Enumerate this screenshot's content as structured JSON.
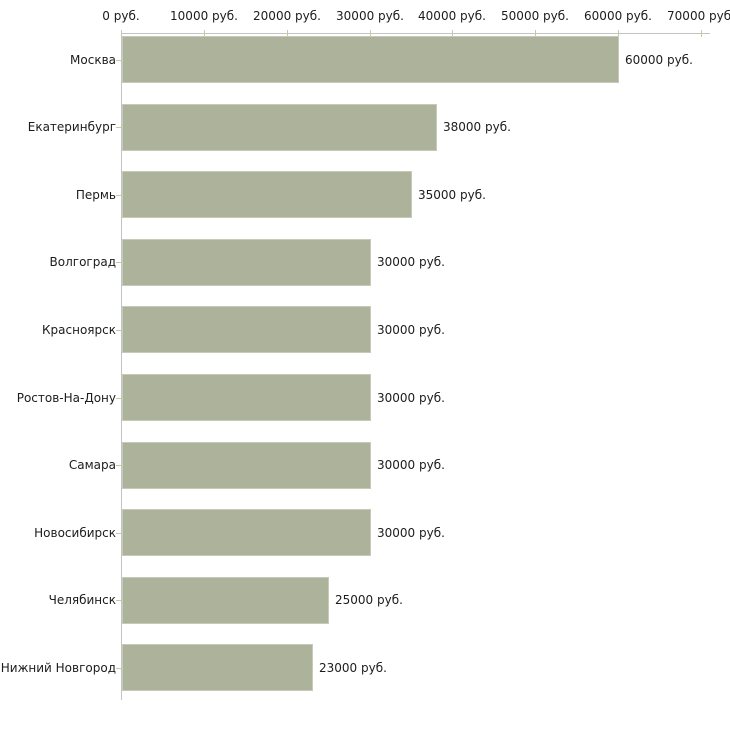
{
  "chart_data": {
    "type": "bar",
    "orientation": "horizontal",
    "title": "",
    "categories": [
      "Москва",
      "Екатеринбург",
      "Пермь",
      "Волгоград",
      "Красноярск",
      "Ростов-На-Дону",
      "Самара",
      "Новосибирск",
      "Челябинск",
      "Нижний Новгород"
    ],
    "values": [
      60000,
      38000,
      35000,
      30000,
      30000,
      30000,
      30000,
      30000,
      25000,
      23000
    ],
    "value_labels": [
      "60000 руб.",
      "38000 руб.",
      "35000 руб.",
      "30000 руб.",
      "30000 руб.",
      "30000 руб.",
      "30000 руб.",
      "30000 руб.",
      "25000 руб.",
      "23000 руб."
    ],
    "x_ticks": [
      0,
      10000,
      20000,
      30000,
      40000,
      50000,
      60000,
      70000
    ],
    "x_tick_labels": [
      "0 руб.",
      "10000 руб.",
      "20000 руб.",
      "30000 руб.",
      "40000 руб.",
      "50000 руб.",
      "60000 руб.",
      "70000 руб."
    ],
    "xlim": [
      0,
      70000
    ],
    "unit": "руб.",
    "xlabel": "",
    "ylabel": "",
    "grid": false,
    "legend": null,
    "colors": {
      "bar_fill": "#adb39a",
      "bar_border": "#c6cab8",
      "axis_line": "#c3c3c3",
      "tick_mark": "#c9c9a0",
      "text": "#1c1c1c",
      "background": "#ffffff"
    }
  }
}
